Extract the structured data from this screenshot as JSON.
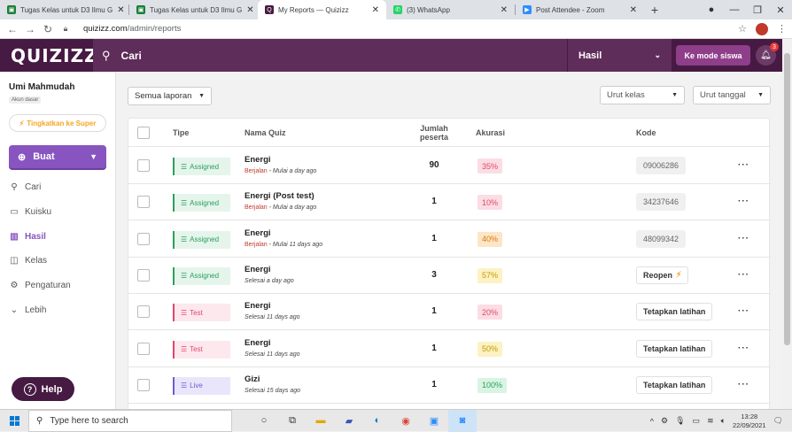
{
  "browser": {
    "tabs": [
      {
        "title": "Tugas Kelas untuk D3 Ilmu G",
        "icon": "classroom-icon",
        "color": "#188038",
        "active": false
      },
      {
        "title": "Tugas Kelas untuk D3 Ilmu G",
        "icon": "classroom-icon",
        "color": "#188038",
        "active": false
      },
      {
        "title": "My Reports — Quizizz",
        "icon": "quizizz-icon",
        "color": "#461a42",
        "active": true
      },
      {
        "title": "(3) WhatsApp",
        "icon": "whatsapp-icon",
        "color": "#25d366",
        "active": false
      },
      {
        "title": "Post Attendee - Zoom",
        "icon": "zoom-icon",
        "color": "#2d8cff",
        "active": false
      }
    ],
    "url_host": "quizizz.com",
    "url_path": "/admin/reports"
  },
  "topnav": {
    "logo": "QUIZIZZ",
    "search_label": "Cari",
    "section_label": "Hasil",
    "student_mode_label": "Ke mode siswa",
    "notification_count": "3"
  },
  "sidebar": {
    "user_name": "Umi Mahmudah",
    "account_type": "Akun dasar",
    "upgrade_label": "Tingkatkan ke Super",
    "create_label": "Buat",
    "items": [
      {
        "label": "Cari",
        "icon": "search-icon",
        "active": false
      },
      {
        "label": "Kuisku",
        "icon": "folder-icon",
        "active": false
      },
      {
        "label": "Hasil",
        "icon": "chart-icon",
        "active": true
      },
      {
        "label": "Kelas",
        "icon": "class-icon",
        "active": false
      },
      {
        "label": "Pengaturan",
        "icon": "gear-icon",
        "active": false
      },
      {
        "label": "Lebih",
        "icon": "chevron-down-icon",
        "active": false
      }
    ],
    "help_label": "Help"
  },
  "filters": {
    "report_filter": "Semua laporan",
    "sort_class": "Urut kelas",
    "sort_date": "Urut tanggal"
  },
  "table": {
    "headers": {
      "type": "Tipe",
      "quiz_name": "Nama Quiz",
      "participants_line1": "Jumlah",
      "participants_line2": "peserta",
      "accuracy": "Akurasi",
      "code": "Kode"
    },
    "rows": [
      {
        "type": "Assigned",
        "type_style": "assigned",
        "name": "Energi",
        "status": "Berjalan",
        "status_style": "run",
        "time": " - Mulai a day ago",
        "count": "90",
        "accuracy": "35%",
        "acc_style": "red",
        "code": "09006286",
        "code_style": "code"
      },
      {
        "type": "Assigned",
        "type_style": "assigned",
        "name": "Energi (Post test)",
        "status": "Berjalan",
        "status_style": "run",
        "time": " - Mulai a day ago",
        "count": "1",
        "accuracy": "10%",
        "acc_style": "red",
        "code": "34237646",
        "code_style": "code"
      },
      {
        "type": "Assigned",
        "type_style": "assigned",
        "name": "Energi",
        "status": "Berjalan",
        "status_style": "run",
        "time": " - Mulai 11 days ago",
        "count": "1",
        "accuracy": "40%",
        "acc_style": "orange",
        "code": "48099342",
        "code_style": "code"
      },
      {
        "type": "Assigned",
        "type_style": "assigned",
        "name": "Energi",
        "status": "Selesai a day ago",
        "status_style": "done",
        "time": "",
        "count": "3",
        "accuracy": "57%",
        "acc_style": "yellow",
        "code": "Reopen",
        "code_style": "action-bolt"
      },
      {
        "type": "Test",
        "type_style": "test",
        "name": "Energi",
        "status": "Selesai 11 days ago",
        "status_style": "done",
        "time": "",
        "count": "1",
        "accuracy": "20%",
        "acc_style": "red",
        "code": "Tetapkan latihan",
        "code_style": "action"
      },
      {
        "type": "Test",
        "type_style": "test",
        "name": "Energi",
        "status": "Selesai 11 days ago",
        "status_style": "done",
        "time": "",
        "count": "1",
        "accuracy": "50%",
        "acc_style": "yellow",
        "code": "Tetapkan latihan",
        "code_style": "action"
      },
      {
        "type": "Live",
        "type_style": "live",
        "name": "Gizi",
        "status": "Selesai 15 days ago",
        "status_style": "done",
        "time": "",
        "count": "1",
        "accuracy": "100%",
        "acc_style": "green",
        "code": "Tetapkan latihan",
        "code_style": "action"
      }
    ],
    "more_label": "···"
  },
  "taskbar": {
    "search_placeholder": "Type here to search",
    "time": "13:28",
    "date": "22/09/2021"
  }
}
